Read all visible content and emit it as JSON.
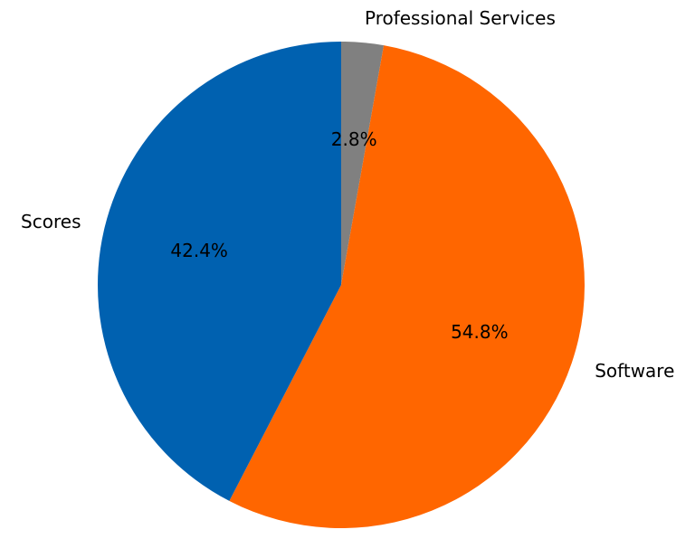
{
  "chart_data": {
    "type": "pie",
    "categories": [
      "Professional Services",
      "Software",
      "Scores"
    ],
    "values": [
      2.8,
      54.8,
      42.4
    ],
    "labels": [
      "2.8%",
      "54.8%",
      "42.4%"
    ],
    "colors": [
      "#808080",
      "#ff6600",
      "#0061b0"
    ],
    "start_angle_deg": 90,
    "direction": "clockwise"
  }
}
